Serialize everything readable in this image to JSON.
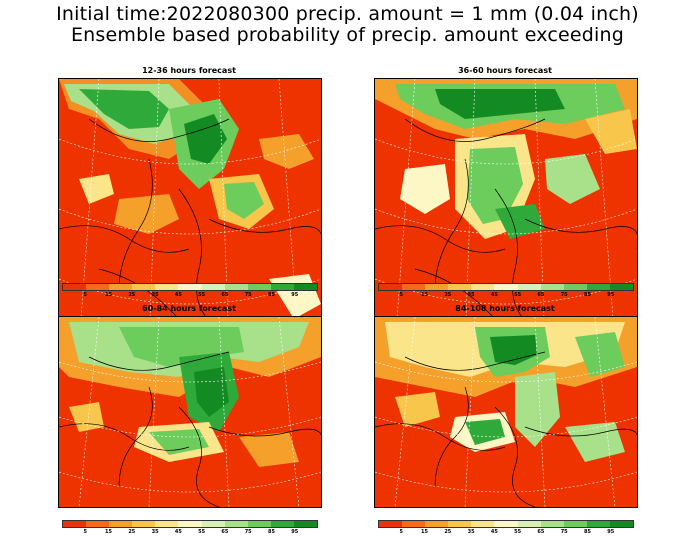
{
  "title": {
    "line1": "Initial time:2022080300 precip. amount = 1 mm (0.04 inch)",
    "line2": "Ensemble based probability of precip. amount exceeding"
  },
  "panels": [
    {
      "title": "12-36 hours forecast"
    },
    {
      "title": "36-60 hours forecast"
    },
    {
      "title": "60-84 hours forecast"
    },
    {
      "title": "84-108 hours forecast"
    }
  ],
  "colorbar": {
    "colors": [
      "#e8330c",
      "#f26a1a",
      "#f5a02a",
      "#f8c64a",
      "#fbe58a",
      "#fdf7c6",
      "#d7f0b4",
      "#a9e08a",
      "#6ccc5c",
      "#2faa3a",
      "#138a22"
    ],
    "labels": [
      "5",
      "15",
      "25",
      "35",
      "45",
      "55",
      "65",
      "75",
      "85",
      "95"
    ]
  },
  "colors": {
    "background_field": "#ee3300",
    "coastline": "#000000",
    "gridline": "#ffffff"
  }
}
